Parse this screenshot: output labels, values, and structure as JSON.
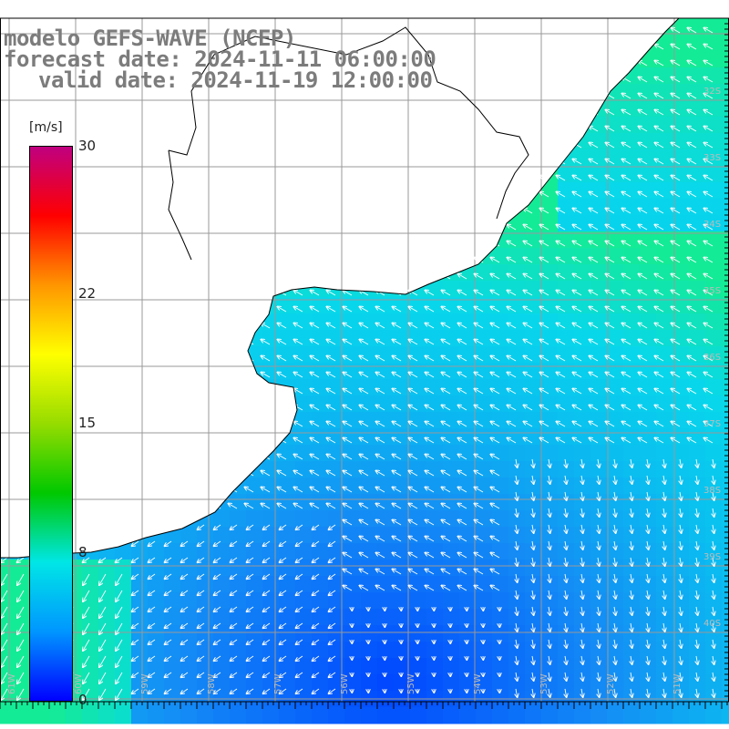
{
  "title": {
    "line1": "modelo GEFS-WAVE (NCEP)",
    "line2": "forecast date: 2024-11-11 06:00:00",
    "line3": "valid date: 2024-11-19 12:00:00"
  },
  "colorbar": {
    "units": "[m/s]",
    "min": 0,
    "max": 30,
    "ticks": [
      "30",
      "22",
      "15",
      "8",
      "0"
    ],
    "colors": [
      "#0000ff",
      "#0096ff",
      "#00e6e6",
      "#00c800",
      "#96dc00",
      "#ffff00",
      "#ff9600",
      "#ff0000",
      "#c00080"
    ]
  },
  "map": {
    "wind_direction_general": "SE to NW (onshore)",
    "lat_labels": [
      "32S",
      "33S",
      "34S",
      "35S",
      "36S",
      "37S",
      "38S",
      "39S",
      "40S"
    ],
    "lon_labels": [
      "61W",
      "60W",
      "59W",
      "58W",
      "57W",
      "56W",
      "55W",
      "54W",
      "53W",
      "52W",
      "51W"
    ],
    "colors": {
      "land": "#ffffff",
      "coast": "#000000",
      "grid": "#999999",
      "ocean_near_coast": "#08cfee",
      "ocean_mid": "#18a8f0",
      "ocean_low": "#0050ff",
      "arrow": "#ffffff"
    }
  }
}
